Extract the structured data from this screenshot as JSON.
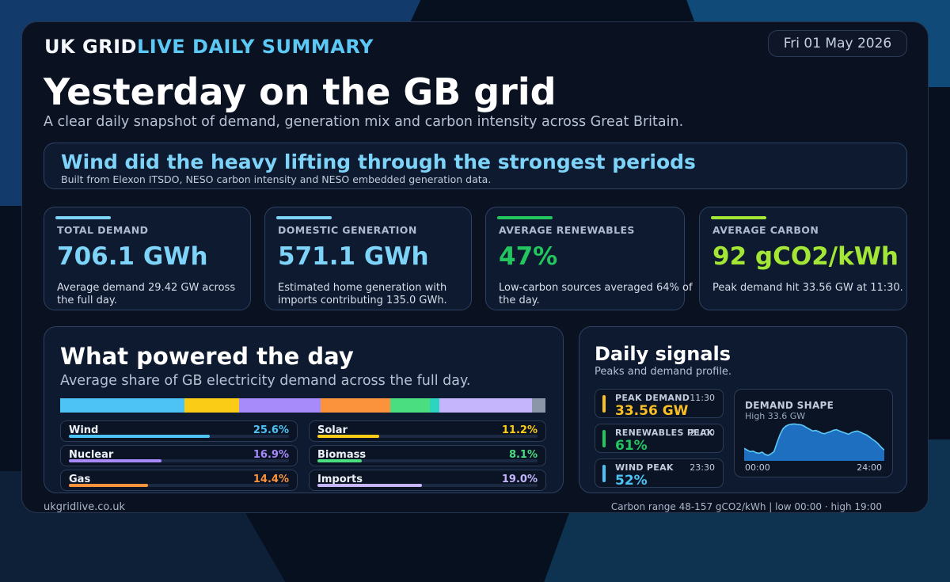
{
  "brand": {
    "part1": "UK GRID",
    "part2": "LIVE DAILY SUMMARY"
  },
  "date": "Fri 01 May 2026",
  "title": "Yesterday on the GB grid",
  "subtitle": "A clear daily snapshot of demand, generation mix and carbon intensity across Great Britain.",
  "headline": {
    "text": "Wind did the heavy lifting through the strongest periods",
    "source": "Built from Elexon ITSDO, NESO carbon intensity and NESO embedded generation data."
  },
  "kpis": [
    {
      "label": "TOTAL DEMAND",
      "value": "706.1 GWh",
      "desc": "Average demand 29.42 GW across the full day.",
      "color": "#7dd3f8"
    },
    {
      "label": "DOMESTIC GENERATION",
      "value": "571.1 GWh",
      "desc": "Estimated home generation with imports contributing 135.0 GWh.",
      "color": "#7dd3f8"
    },
    {
      "label": "AVERAGE RENEWABLES",
      "value": "47%",
      "desc": "Low-carbon sources averaged 64% of the day.",
      "color": "#22c55e"
    },
    {
      "label": "AVERAGE CARBON",
      "value": "92 gCO2/kWh",
      "desc": "Peak demand hit 33.56 GW at 11:30.",
      "color": "#a3e635"
    }
  ],
  "mix": {
    "title": "What powered the day",
    "subtitle": "Average share of GB electricity demand across the full day.",
    "stack": [
      {
        "share": 25.6,
        "color": "#4cc3f4"
      },
      {
        "share": 11.2,
        "color": "#facc15"
      },
      {
        "share": 16.9,
        "color": "#a78bfa"
      },
      {
        "share": 14.4,
        "color": "#fb923c"
      },
      {
        "share": 8.1,
        "color": "#4ade80"
      },
      {
        "share": 2.0,
        "color": "#2dd4bf"
      },
      {
        "share": 19.0,
        "color": "#c4b5fd"
      },
      {
        "share": 2.8,
        "color": "#8b97a8"
      }
    ],
    "sources": [
      {
        "name": "Wind",
        "pct": "25.6%",
        "share": 25.6,
        "color": "#4cc3f4"
      },
      {
        "name": "Solar",
        "pct": "11.2%",
        "share": 11.2,
        "color": "#facc15"
      },
      {
        "name": "Nuclear",
        "pct": "16.9%",
        "share": 16.9,
        "color": "#a78bfa"
      },
      {
        "name": "Biomass",
        "pct": "8.1%",
        "share": 8.1,
        "color": "#4ade80"
      },
      {
        "name": "Gas",
        "pct": "14.4%",
        "share": 14.4,
        "color": "#fb923c"
      },
      {
        "name": "Imports",
        "pct": "19.0%",
        "share": 19.0,
        "color": "#c4b5fd"
      }
    ]
  },
  "signals": {
    "title": "Daily signals",
    "subtitle": "Peaks and demand profile.",
    "items": [
      {
        "label": "PEAK DEMAND",
        "time": "11:30",
        "value": "33.56 GW",
        "color": "#fbbf24"
      },
      {
        "label": "RENEWABLES PEAK",
        "time": "21:00",
        "value": "61%",
        "color": "#22c55e"
      },
      {
        "label": "WIND PEAK",
        "time": "23:30",
        "value": "52%",
        "color": "#4cc3f4"
      }
    ],
    "shape": {
      "label": "DEMAND SHAPE",
      "high": "High 33.6 GW",
      "t_start": "00:00",
      "t_end": "24:00",
      "series": [
        24.6,
        24.0,
        23.4,
        23.6,
        23.0,
        22.8,
        23.2,
        22.4,
        22.0,
        22.6,
        23.4,
        26.6,
        29.6,
        31.8,
        32.8,
        33.3,
        33.5,
        33.6,
        33.4,
        33.3,
        32.9,
        32.2,
        31.6,
        31.0,
        31.2,
        30.8,
        30.2,
        30.0,
        30.4,
        30.8,
        31.3,
        31.5,
        31.0,
        30.6,
        30.2,
        29.8,
        30.4,
        30.8,
        31.0,
        30.6,
        30.0,
        29.6,
        28.8,
        28.0,
        27.2,
        26.2,
        25.0,
        24.0
      ],
      "ymin": 20,
      "ymax": 34
    }
  },
  "footer": {
    "site": "ukgridlive.co.uk",
    "carbon": "Carbon range 48-157 gCO2/kWh | low 00:00 · high 19:00"
  }
}
